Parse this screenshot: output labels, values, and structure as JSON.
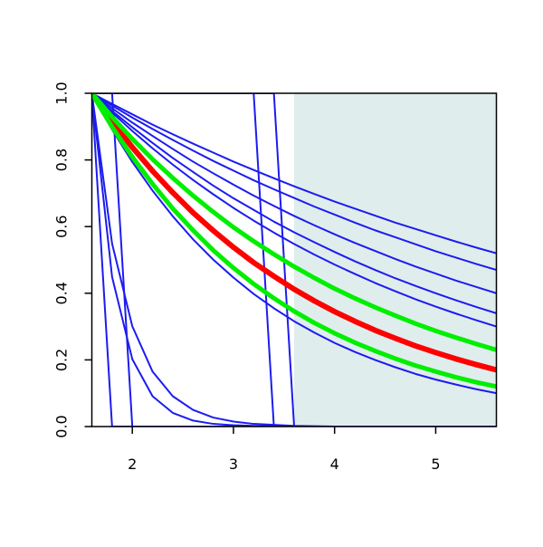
{
  "chart_data": {
    "type": "line",
    "x": [
      1.6,
      1.8,
      2.0,
      2.2,
      2.4,
      2.6,
      2.8,
      3.0,
      3.2,
      3.4,
      3.6,
      3.8,
      4.0,
      4.2,
      4.4,
      4.6,
      4.8,
      5.0,
      5.2,
      5.4,
      5.6
    ],
    "xlim": [
      1.6,
      5.6
    ],
    "ylim": [
      0,
      1
    ],
    "xticks": [
      2,
      3,
      4,
      5
    ],
    "yticks": [
      {
        "value": 0,
        "label": "0.0"
      },
      {
        "value": 0.2,
        "label": "0.2"
      },
      {
        "value": 0.4,
        "label": "0.4"
      },
      {
        "value": 0.6,
        "label": "0.6"
      },
      {
        "value": 0.8,
        "label": "0.8"
      },
      {
        "value": 1,
        "label": "1.0"
      }
    ],
    "shaded_region": {
      "xlim": [
        3.6,
        5.6
      ],
      "color": "#e0eded"
    },
    "series": [
      {
        "color": "#1c1cf0",
        "line_width": 2,
        "values": [
          1,
          0.968,
          0.937,
          0.906,
          0.877,
          0.849,
          0.822,
          0.795,
          0.77,
          0.745,
          0.721,
          0.698,
          0.675,
          0.654,
          0.633,
          0.612,
          0.593,
          0.574,
          0.555,
          0.537,
          0.52
        ]
      },
      {
        "color": "#1c1cf0",
        "line_width": 2,
        "values": [
          1,
          0.963,
          0.927,
          0.893,
          0.86,
          0.828,
          0.797,
          0.768,
          0.739,
          0.712,
          0.686,
          0.66,
          0.636,
          0.612,
          0.589,
          0.568,
          0.547,
          0.526,
          0.507,
          0.488,
          0.47
        ]
      },
      {
        "color": "#1c1cf0",
        "line_width": 2,
        "values": [
          1,
          0.955,
          0.912,
          0.872,
          0.833,
          0.795,
          0.76,
          0.726,
          0.693,
          0.662,
          0.632,
          0.604,
          0.577,
          0.551,
          0.527,
          0.503,
          0.48,
          0.459,
          0.438,
          0.419,
          0.4
        ]
      },
      {
        "color": "#1c1cf0",
        "line_width": 2,
        "values": [
          1,
          0.947,
          0.898,
          0.851,
          0.806,
          0.764,
          0.723,
          0.685,
          0.65,
          0.615,
          0.583,
          0.553,
          0.524,
          0.496,
          0.47,
          0.445,
          0.422,
          0.4,
          0.379,
          0.359,
          0.34
        ]
      },
      {
        "color": "#1c1cf0",
        "line_width": 2,
        "values": [
          1,
          0.942,
          0.887,
          0.835,
          0.786,
          0.74,
          0.697,
          0.656,
          0.618,
          0.582,
          0.548,
          0.516,
          0.486,
          0.458,
          0.431,
          0.406,
          0.382,
          0.36,
          0.339,
          0.319,
          0.3
        ]
      },
      {
        "color": "#1c1cf0",
        "line_width": 2,
        "values": [
          1,
          0.891,
          0.794,
          0.708,
          0.631,
          0.562,
          0.501,
          0.447,
          0.398,
          0.355,
          0.316,
          0.282,
          0.251,
          0.224,
          0.2,
          0.178,
          0.158,
          0.141,
          0.126,
          0.112,
          0.1
        ]
      },
      {
        "color": "#1c1cf0",
        "line_width": 2,
        "values": [
          1,
          0.449,
          0.202,
          0.091,
          0.041,
          0.018,
          0.008,
          0.004,
          0.002,
          0.001,
          0,
          0,
          0,
          0,
          0,
          0,
          0,
          0,
          0,
          0,
          0
        ]
      },
      {
        "color": "#1c1cf0",
        "line_width": 2,
        "values": [
          1,
          0.549,
          0.301,
          0.165,
          0.091,
          0.05,
          0.027,
          0.015,
          0.008,
          0.005,
          0.002,
          0.001,
          0,
          0,
          0,
          0,
          0,
          0,
          0,
          0,
          0
        ]
      },
      {
        "color": "#1c1cf0",
        "line_width": 2,
        "values": [
          1,
          0,
          0,
          0,
          0,
          0,
          0,
          0,
          0,
          0,
          0,
          0,
          0,
          0,
          0,
          0,
          0,
          0,
          0,
          0,
          0
        ]
      },
      {
        "color": "#1c1cf0",
        "line_width": 2,
        "values": [
          1,
          1,
          0,
          0,
          0,
          0,
          0,
          0,
          0,
          0,
          0,
          0,
          0,
          0,
          0,
          0,
          0,
          0,
          0,
          0,
          0
        ]
      },
      {
        "color": "#1c1cf0",
        "line_width": 2,
        "values": [
          1,
          1,
          1,
          1,
          1,
          1,
          1,
          1,
          1,
          0,
          0,
          0,
          0,
          0,
          0,
          0,
          0,
          0,
          0,
          0,
          0
        ]
      },
      {
        "color": "#1c1cf0",
        "line_width": 2,
        "values": [
          1,
          1,
          1,
          1,
          1,
          1,
          1,
          1,
          1,
          1,
          0,
          0,
          0,
          0,
          0,
          0,
          0,
          0,
          0,
          0,
          0
        ]
      },
      {
        "color": "#ff0000",
        "line_width": 6,
        "values": [
          1,
          0.915,
          0.838,
          0.767,
          0.702,
          0.642,
          0.588,
          0.538,
          0.492,
          0.451,
          0.412,
          0.377,
          0.345,
          0.316,
          0.289,
          0.265,
          0.242,
          0.222,
          0.203,
          0.186,
          0.17
        ]
      },
      {
        "color": "#00ee00",
        "line_width": 5,
        "values": [
          1,
          0.929,
          0.863,
          0.802,
          0.746,
          0.693,
          0.644,
          0.598,
          0.556,
          0.517,
          0.48,
          0.446,
          0.414,
          0.385,
          0.358,
          0.333,
          0.309,
          0.287,
          0.267,
          0.248,
          0.23
        ]
      },
      {
        "color": "#00ee00",
        "line_width": 5,
        "values": [
          1,
          0.899,
          0.809,
          0.728,
          0.654,
          0.589,
          0.529,
          0.476,
          0.428,
          0.385,
          0.346,
          0.311,
          0.28,
          0.252,
          0.227,
          0.204,
          0.183,
          0.165,
          0.148,
          0.133,
          0.12
        ]
      }
    ]
  }
}
